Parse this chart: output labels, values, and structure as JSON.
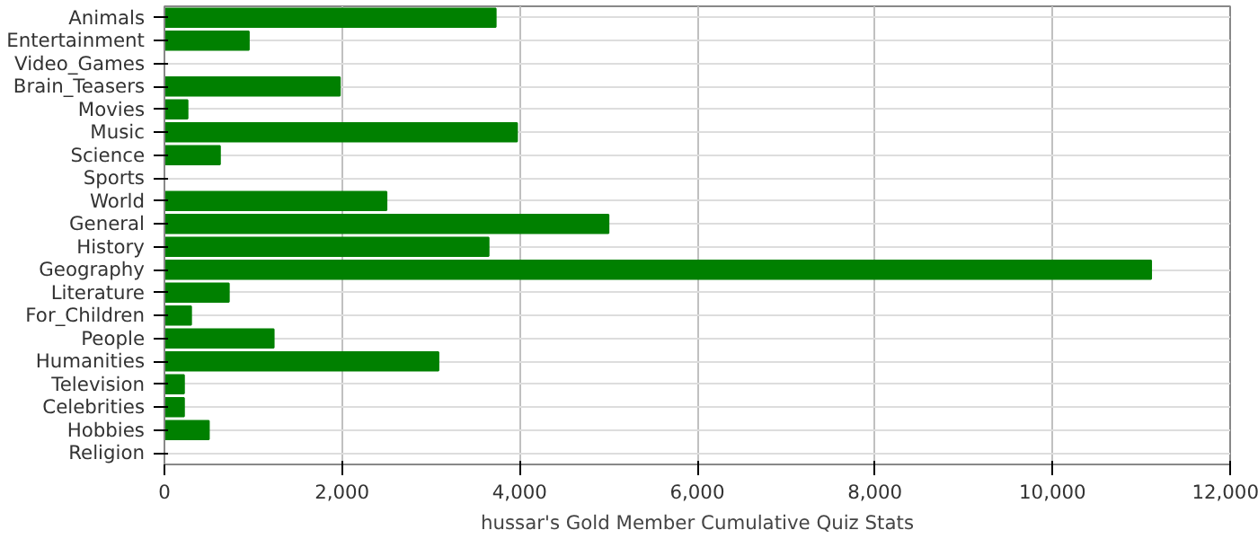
{
  "chart_data": {
    "type": "bar",
    "orientation": "horizontal",
    "xlabel": "hussar's Gold Member Cumulative Quiz Stats",
    "categories": [
      "Animals",
      "Entertainment",
      "Video_Games",
      "Brain_Teasers",
      "Movies",
      "Music",
      "Science",
      "Sports",
      "World",
      "General",
      "History",
      "Geography",
      "Literature",
      "For_Children",
      "People",
      "Humanities",
      "Television",
      "Celebrities",
      "Hobbies",
      "Religion"
    ],
    "values": [
      3730,
      950,
      0,
      1975,
      260,
      3970,
      625,
      0,
      2500,
      5000,
      3650,
      11110,
      725,
      300,
      1230,
      3085,
      220,
      220,
      500,
      0
    ],
    "color": "#008000",
    "xlim": [
      0,
      12000
    ],
    "xticks": [
      {
        "value": 0,
        "label": "0"
      },
      {
        "value": 2000,
        "label": "2,000"
      },
      {
        "value": 4000,
        "label": "4,000"
      },
      {
        "value": 6000,
        "label": "6,000"
      },
      {
        "value": 8000,
        "label": "8,000"
      },
      {
        "value": 10000,
        "label": "10,000"
      },
      {
        "value": 12000,
        "label": "12,000"
      }
    ],
    "grid": true
  }
}
